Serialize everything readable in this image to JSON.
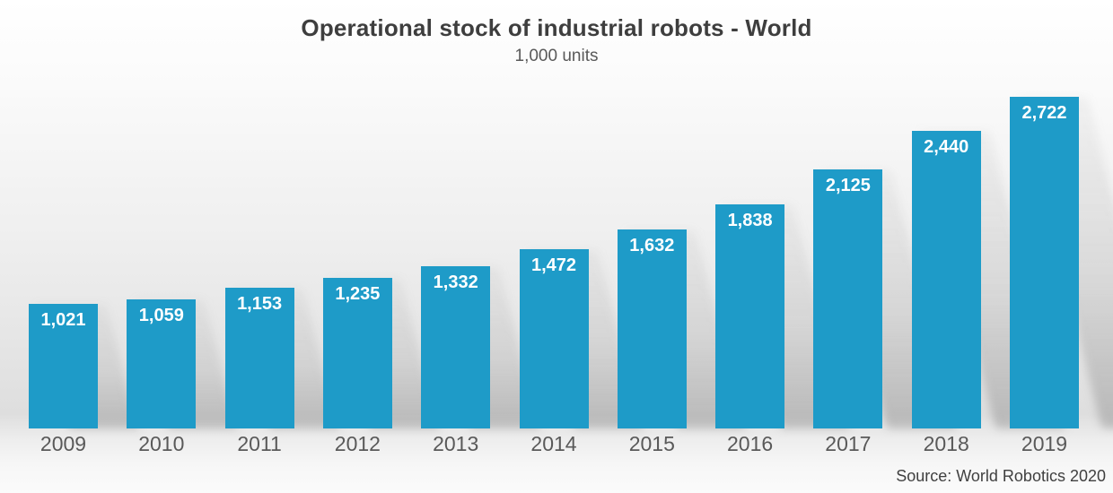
{
  "chart_data": {
    "type": "bar",
    "title": "Operational stock of industrial robots - World",
    "subtitle": "1,000 units",
    "source": "Source: World Robotics 2020",
    "categories": [
      "2009",
      "2010",
      "2011",
      "2012",
      "2013",
      "2014",
      "2015",
      "2016",
      "2017",
      "2018",
      "2019"
    ],
    "values": [
      1021,
      1059,
      1153,
      1235,
      1332,
      1472,
      1632,
      1838,
      2125,
      2440,
      2722
    ],
    "value_labels": [
      "1,021",
      "1,059",
      "1,153",
      "1,235",
      "1,332",
      "1,472",
      "1,632",
      "1,838",
      "2,125",
      "2,440",
      "2,722"
    ],
    "xlabel": "",
    "ylabel": "",
    "ylim": [
      0,
      2900
    ],
    "grid": false,
    "legend": false,
    "bar_color": "#1E9BC8",
    "value_label_color": "#ffffff",
    "tick_label_color": "#595959",
    "title_color": "#3e3e3e",
    "subtitle_color": "#595959"
  }
}
